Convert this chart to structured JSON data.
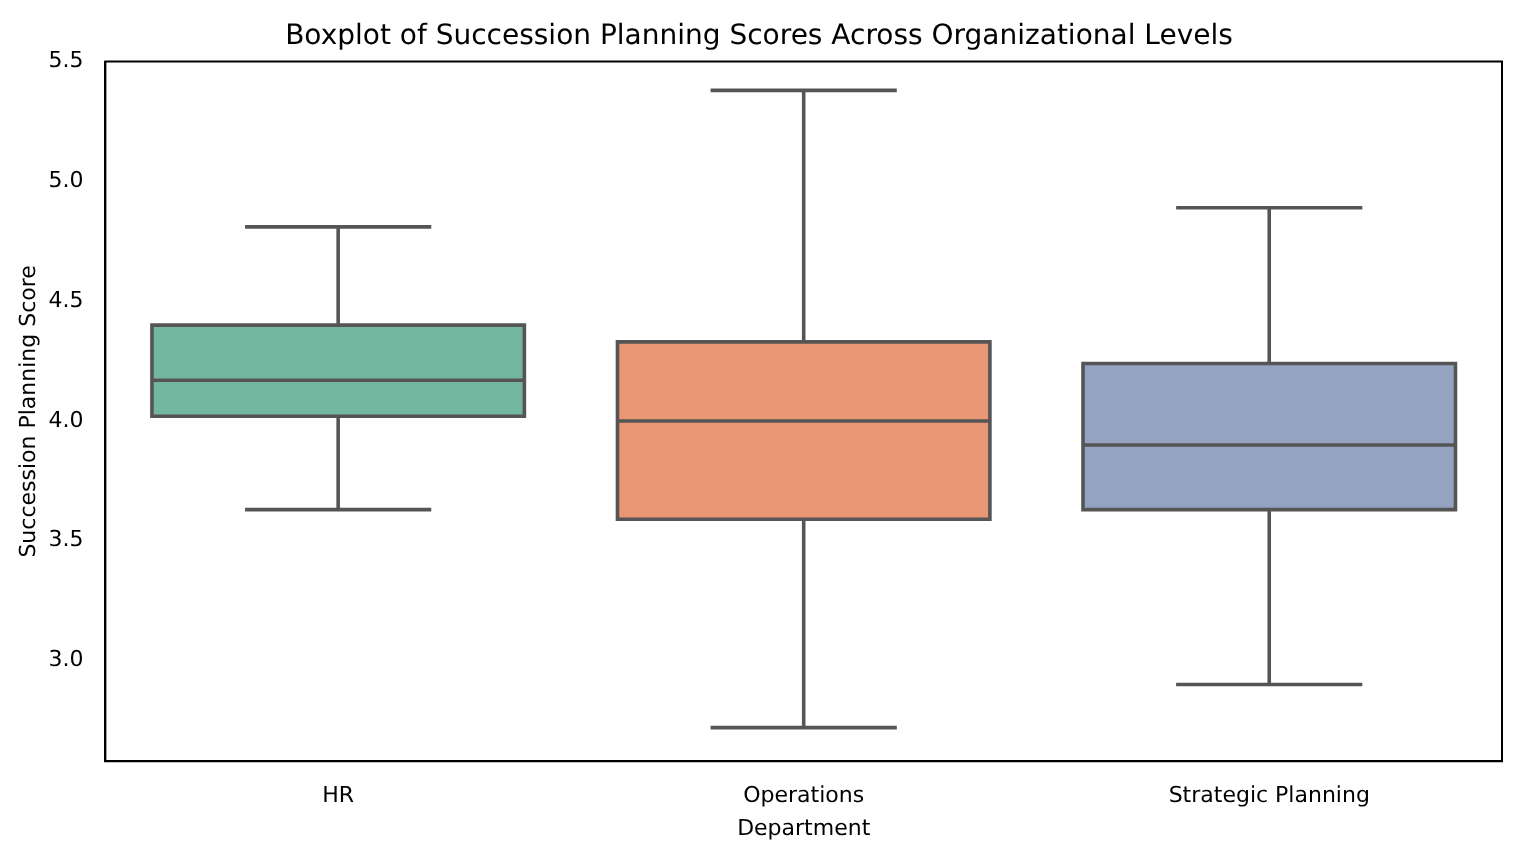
{
  "chart_data": {
    "type": "box",
    "title": "Boxplot of Succession Planning Scores Across Organizational Levels",
    "xlabel": "Department",
    "ylabel": "Succession Planning Score",
    "categories": [
      "HR",
      "Operations",
      "Strategic Planning"
    ],
    "colors": [
      "#74b7a0",
      "#e99675",
      "#95a3c3"
    ],
    "boxes": [
      {
        "low": 3.63,
        "q1": 4.02,
        "median": 4.17,
        "q3": 4.4,
        "high": 4.81
      },
      {
        "low": 2.72,
        "q1": 3.59,
        "median": 4.0,
        "q3": 4.33,
        "high": 5.38
      },
      {
        "low": 2.9,
        "q1": 3.63,
        "median": 3.9,
        "q3": 4.24,
        "high": 4.89
      }
    ],
    "ylim": [
      2.58,
      5.5
    ],
    "yticks": [
      {
        "value": 3,
        "label": "3.0"
      },
      {
        "value": 3.5,
        "label": "3.5"
      },
      {
        "value": 4,
        "label": "4.0"
      },
      {
        "value": 4.5,
        "label": "4.5"
      },
      {
        "value": 5,
        "label": "5.0"
      },
      {
        "value": 5.5,
        "label": "5.5"
      }
    ],
    "grid": false,
    "legend": false
  }
}
